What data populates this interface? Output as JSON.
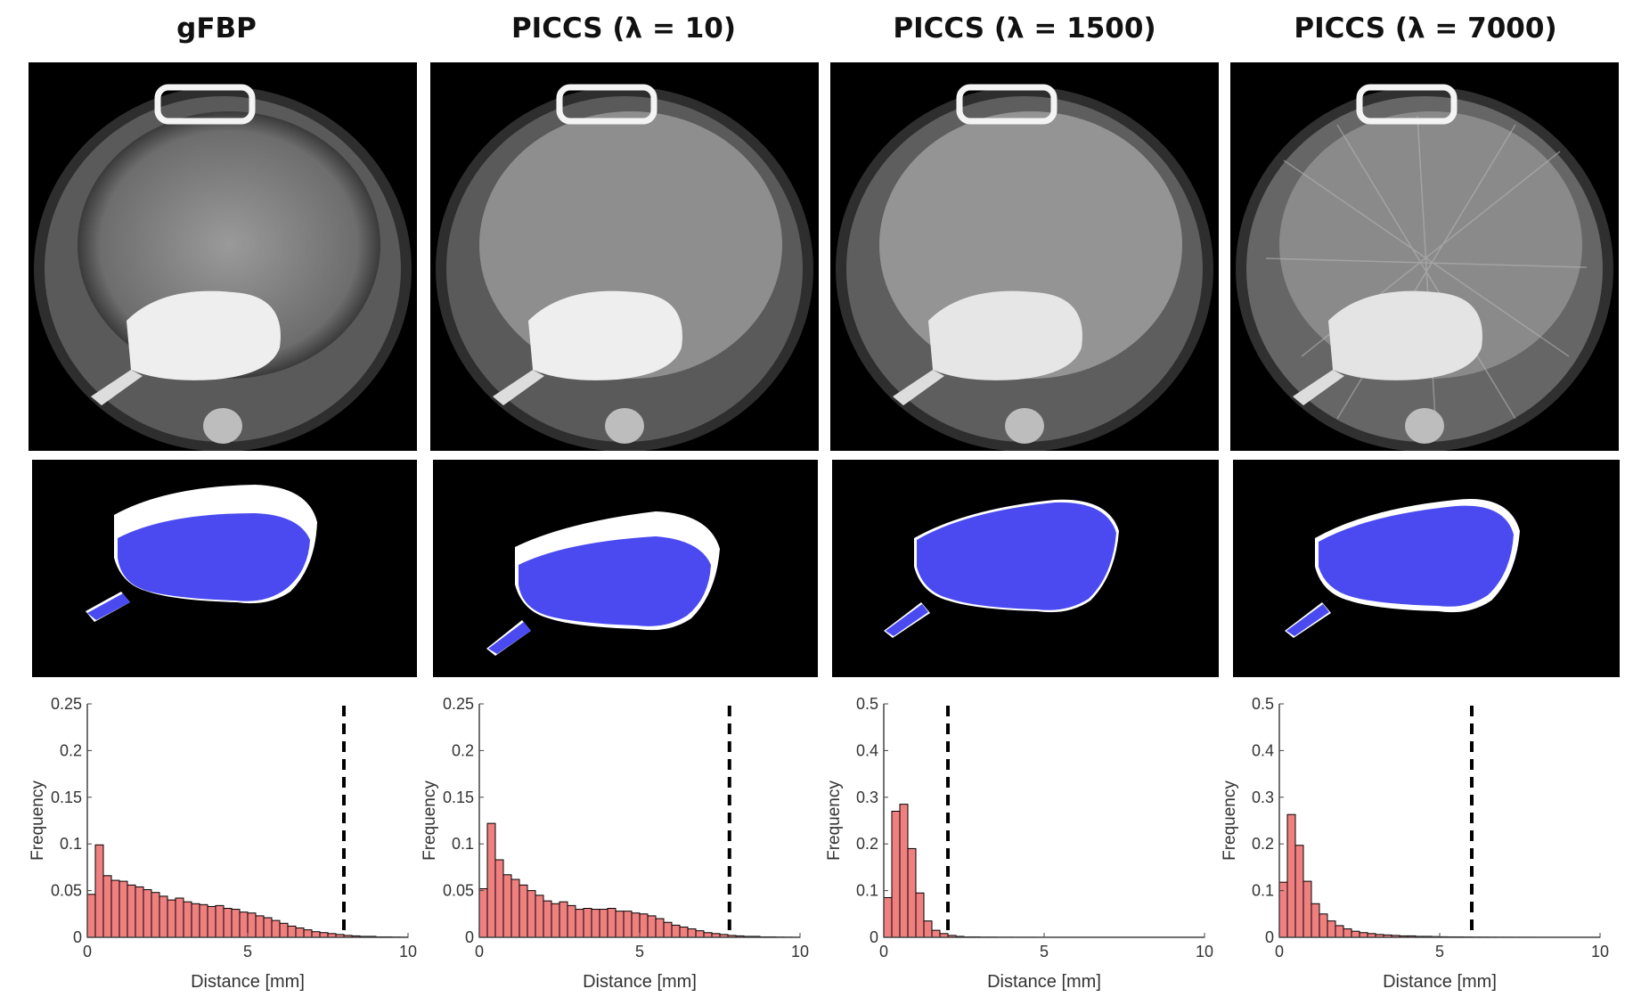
{
  "panels": [
    {
      "title": "gFBP"
    },
    {
      "title": "PICCS (λ = 10)"
    },
    {
      "title": "PICCS (λ = 1500)"
    },
    {
      "title": "PICCS (λ = 7000)"
    }
  ],
  "colors": {
    "bar_fill": "#f08080",
    "bar_edge": "#000000",
    "segmentation_overlay": "#4a4af0",
    "segmentation_reference": "#ffffff",
    "panel_background": "#000000"
  },
  "chart_data": [
    {
      "type": "bar",
      "panel_title": "gFBP",
      "xlabel": "Distance [mm]",
      "ylabel": "Frequency",
      "xlim": [
        0,
        10
      ],
      "ylim": [
        0,
        0.25
      ],
      "xticks": [
        0,
        5,
        10
      ],
      "yticks": [
        0,
        0.05,
        0.1,
        0.15,
        0.2,
        0.25
      ],
      "ytick_labels": [
        "0",
        "0.05",
        "0.1",
        "0.15",
        "0.2",
        "0.25"
      ],
      "bin_width": 0.25,
      "values": [
        0.046,
        0.099,
        0.066,
        0.061,
        0.06,
        0.056,
        0.054,
        0.051,
        0.048,
        0.044,
        0.04,
        0.042,
        0.038,
        0.036,
        0.035,
        0.033,
        0.034,
        0.031,
        0.03,
        0.027,
        0.026,
        0.023,
        0.021,
        0.018,
        0.015,
        0.012,
        0.01,
        0.008,
        0.006,
        0.005,
        0.004,
        0.003,
        0.002,
        0.0015,
        0.001,
        0.001,
        0.0005,
        0.0005,
        0.0003,
        0.0002
      ],
      "threshold": 8.0,
      "grid": false
    },
    {
      "type": "bar",
      "panel_title": "PICCS (λ = 10)",
      "xlabel": "Distance [mm]",
      "ylabel": "Frequency",
      "xlim": [
        0,
        10
      ],
      "ylim": [
        0,
        0.25
      ],
      "xticks": [
        0,
        5,
        10
      ],
      "yticks": [
        0,
        0.05,
        0.1,
        0.15,
        0.2,
        0.25
      ],
      "ytick_labels": [
        "0",
        "0.05",
        "0.1",
        "0.15",
        "0.2",
        "0.25"
      ],
      "bin_width": 0.25,
      "values": [
        0.052,
        0.122,
        0.083,
        0.067,
        0.062,
        0.056,
        0.05,
        0.045,
        0.039,
        0.036,
        0.038,
        0.034,
        0.03,
        0.031,
        0.03,
        0.03,
        0.031,
        0.028,
        0.028,
        0.026,
        0.025,
        0.023,
        0.02,
        0.016,
        0.013,
        0.011,
        0.009,
        0.007,
        0.005,
        0.004,
        0.003,
        0.002,
        0.0015,
        0.001,
        0.001,
        0.0005,
        0.0005,
        0.0003,
        0.0002,
        0.0001
      ],
      "threshold": 7.8,
      "grid": false
    },
    {
      "type": "bar",
      "panel_title": "PICCS (λ = 1500)",
      "xlabel": "Distance [mm]",
      "ylabel": "Frequency",
      "xlim": [
        0,
        10
      ],
      "ylim": [
        0,
        0.5
      ],
      "xticks": [
        0,
        5,
        10
      ],
      "yticks": [
        0,
        0.1,
        0.2,
        0.3,
        0.4,
        0.5
      ],
      "ytick_labels": [
        "0",
        "0.1",
        "0.2",
        "0.3",
        "0.4",
        "0.5"
      ],
      "bin_width": 0.25,
      "values": [
        0.085,
        0.27,
        0.285,
        0.19,
        0.095,
        0.035,
        0.015,
        0.008,
        0.004,
        0.002,
        0.001,
        0.001,
        0.0005,
        0.0005,
        0.0003,
        0.0003,
        0.0002,
        0.0002,
        0.0002,
        0.0001,
        0.0001,
        0.0001,
        0.0001,
        0.0001,
        0.0001,
        0.0001,
        0.0001,
        0.0001,
        0.0001,
        0.0001,
        0.0001,
        0.0001,
        0.0001,
        0.0001,
        0.0001,
        0.0001,
        0.0001,
        0.0001,
        0.0001,
        0.0001
      ],
      "threshold": 2.0,
      "grid": false
    },
    {
      "type": "bar",
      "panel_title": "PICCS (λ = 7000)",
      "xlabel": "Distance [mm]",
      "ylabel": "Frequency",
      "xlim": [
        0,
        10
      ],
      "ylim": [
        0,
        0.5
      ],
      "xticks": [
        0,
        5,
        10
      ],
      "yticks": [
        0,
        0.1,
        0.2,
        0.3,
        0.4,
        0.5
      ],
      "ytick_labels": [
        "0",
        "0.1",
        "0.2",
        "0.3",
        "0.4",
        "0.5"
      ],
      "bin_width": 0.25,
      "values": [
        0.118,
        0.263,
        0.197,
        0.12,
        0.072,
        0.05,
        0.035,
        0.025,
        0.018,
        0.013,
        0.01,
        0.008,
        0.006,
        0.005,
        0.004,
        0.003,
        0.003,
        0.002,
        0.002,
        0.0015,
        0.0012,
        0.001,
        0.001,
        0.0008,
        0.0006,
        0.0005,
        0.0004,
        0.0003,
        0.0003,
        0.0002,
        0.0002,
        0.0002,
        0.0001,
        0.0001,
        0.0001,
        0.0001,
        0.0001,
        0.0001,
        0.0001,
        0.0001
      ],
      "threshold": 6.0,
      "grid": false
    }
  ]
}
